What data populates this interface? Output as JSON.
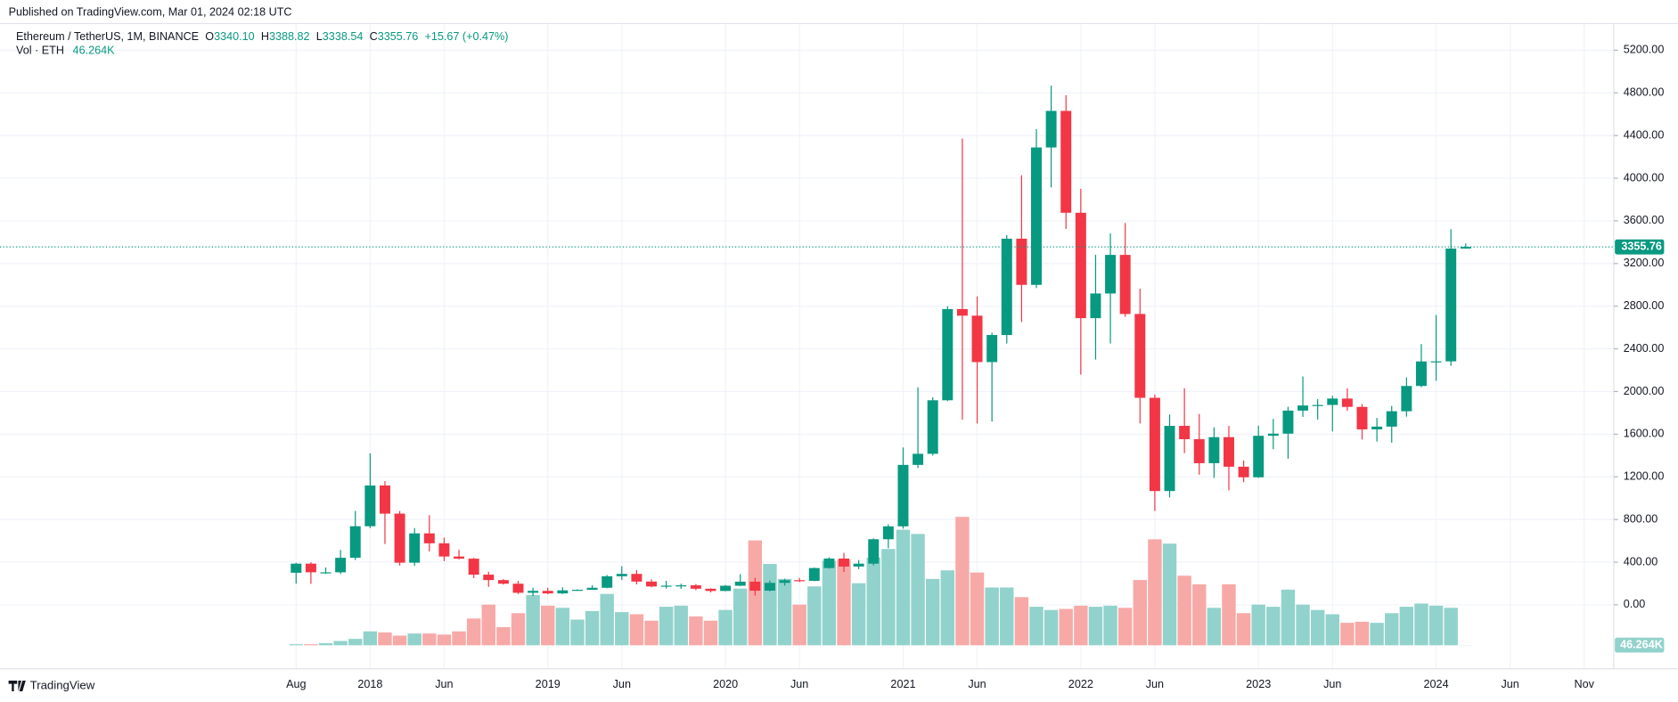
{
  "header": {
    "published": "Published on TradingView.com, Mar 01, 2024 02:18 UTC"
  },
  "legend": {
    "symbol": "Ethereum / TetherUS, 1M, BINANCE",
    "o": "O",
    "open": "3340.10",
    "h": "H",
    "high": "3388.82",
    "l": "L",
    "low": "3338.54",
    "c": "C",
    "close": "3355.76",
    "change": "+15.67 (+0.47%)",
    "volume_name": "Vol · ETH"
  },
  "footer": {
    "brand": "TradingView"
  },
  "chart_data": {
    "type": "candlestick",
    "x": [
      "2017-08",
      "2017-09",
      "2017-10",
      "2017-11",
      "2017-12",
      "2018-01",
      "2018-02",
      "2018-03",
      "2018-04",
      "2018-05",
      "2018-06",
      "2018-07",
      "2018-08",
      "2018-09",
      "2018-10",
      "2018-11",
      "2018-12",
      "2019-01",
      "2019-02",
      "2019-03",
      "2019-04",
      "2019-05",
      "2019-06",
      "2019-07",
      "2019-08",
      "2019-09",
      "2019-10",
      "2019-11",
      "2019-12",
      "2020-01",
      "2020-02",
      "2020-03",
      "2020-04",
      "2020-05",
      "2020-06",
      "2020-07",
      "2020-08",
      "2020-09",
      "2020-10",
      "2020-11",
      "2020-12",
      "2021-01",
      "2021-02",
      "2021-03",
      "2021-04",
      "2021-05",
      "2021-06",
      "2021-07",
      "2021-08",
      "2021-09",
      "2021-10",
      "2021-11",
      "2021-12",
      "2022-01",
      "2022-02",
      "2022-03",
      "2022-04",
      "2022-05",
      "2022-06",
      "2022-07",
      "2022-08",
      "2022-09",
      "2022-10",
      "2022-11",
      "2022-12",
      "2023-01",
      "2023-02",
      "2023-03",
      "2023-04",
      "2023-05",
      "2023-06",
      "2023-07",
      "2023-08",
      "2023-09",
      "2023-10",
      "2023-11",
      "2023-12",
      "2024-01",
      "2024-02",
      "2024-03"
    ],
    "open": [
      301,
      386,
      305,
      305,
      441,
      737,
      1119,
      855,
      395,
      670,
      577,
      453,
      433,
      283,
      232,
      198,
      113,
      131,
      107,
      136,
      141,
      160,
      268,
      290,
      218,
      172,
      180,
      183,
      151,
      130,
      179,
      217,
      133,
      206,
      231,
      225,
      345,
      434,
      359,
      386,
      615,
      736,
      1312,
      1416,
      1918,
      2773,
      2711,
      2276,
      2530,
      3433,
      3000,
      4288,
      4631,
      3676,
      2688,
      2919,
      3281,
      2727,
      1941,
      1067,
      1678,
      1553,
      1328,
      1572,
      1295,
      1196,
      1585,
      1605,
      1821,
      1869,
      1874,
      1934,
      1856,
      1645,
      1671,
      1815,
      2052,
      2282,
      2283,
      3340.1
    ],
    "high": [
      394,
      400,
      350,
      515,
      881,
      1420,
      1160,
      880,
      720,
      840,
      630,
      515,
      440,
      310,
      240,
      225,
      160,
      160,
      165,
      145,
      185,
      280,
      362,
      325,
      238,
      225,
      198,
      195,
      155,
      186,
      288,
      253,
      227,
      245,
      253,
      349,
      445,
      488,
      420,
      623,
      755,
      1475,
      2040,
      1945,
      2800,
      4372,
      2891,
      2551,
      3466,
      4027,
      4460,
      4868,
      4778,
      3900,
      3282,
      3482,
      3580,
      2965,
      1972,
      1785,
      2030,
      1790,
      1664,
      1678,
      1353,
      1680,
      1743,
      1857,
      2141,
      1928,
      1960,
      2029,
      1882,
      1752,
      1865,
      2133,
      2445,
      2717,
      3522,
      3388.82
    ],
    "low": [
      200,
      197,
      290,
      290,
      420,
      720,
      570,
      368,
      365,
      500,
      410,
      425,
      250,
      168,
      190,
      101,
      82,
      100,
      102,
      130,
      140,
      155,
      232,
      192,
      165,
      152,
      150,
      137,
      116,
      127,
      176,
      86,
      127,
      180,
      214,
      222,
      340,
      308,
      335,
      370,
      531,
      715,
      1283,
      1400,
      1910,
      1736,
      1700,
      1718,
      2450,
      2651,
      2970,
      3913,
      3524,
      2159,
      2300,
      2450,
      2700,
      1700,
      881,
      1007,
      1422,
      1220,
      1190,
      1073,
      1150,
      1190,
      1460,
      1370,
      1762,
      1737,
      1626,
      1820,
      1550,
      1531,
      1521,
      1764,
      2040,
      2100,
      2240,
      3338.54
    ],
    "close": [
      386,
      305,
      305,
      441,
      737,
      1119,
      855,
      395,
      670,
      577,
      453,
      433,
      283,
      232,
      198,
      113,
      131,
      107,
      136,
      141,
      160,
      268,
      290,
      218,
      172,
      180,
      183,
      151,
      130,
      179,
      217,
      133,
      206,
      231,
      225,
      345,
      434,
      359,
      386,
      615,
      736,
      1312,
      1416,
      1918,
      2773,
      2711,
      2276,
      2530,
      3433,
      3000,
      4288,
      4631,
      3676,
      2688,
      2919,
      3281,
      2727,
      1941,
      1067,
      1678,
      1553,
      1328,
      1572,
      1295,
      1196,
      1585,
      1605,
      1821,
      1869,
      1874,
      1934,
      1856,
      1645,
      1671,
      1815,
      2052,
      2282,
      2283,
      3340.1,
      3355.76
    ],
    "volume": {
      "values": [
        300000,
        300000,
        600000,
        1200000,
        1800000,
        3900000,
        3600000,
        2700000,
        3300000,
        3300000,
        3000000,
        3900000,
        7500000,
        11400000,
        5100000,
        9000000,
        14100000,
        11100000,
        10500000,
        7200000,
        9600000,
        14400000,
        9300000,
        8700000,
        6900000,
        10800000,
        11100000,
        8100000,
        6900000,
        9900000,
        15900000,
        29400000,
        22800000,
        18600000,
        11400000,
        16500000,
        23700000,
        24000000,
        17400000,
        24600000,
        27000000,
        32400000,
        31200000,
        18600000,
        21000000,
        36000000,
        20400000,
        16200000,
        16200000,
        13500000,
        10800000,
        9900000,
        10200000,
        11100000,
        10800000,
        11100000,
        10500000,
        18300000,
        29700000,
        28500000,
        19500000,
        17100000,
        10500000,
        17100000,
        9000000,
        11400000,
        10800000,
        15600000,
        11400000,
        9900000,
        8700000,
        6300000,
        6600000,
        6300000,
        9000000,
        10800000,
        11700000,
        11100000,
        10500000,
        46264
      ],
      "value_labels": [
        null,
        null,
        null,
        null,
        null,
        null,
        null,
        null,
        null,
        null,
        null,
        null,
        null,
        null,
        null,
        null,
        null,
        null,
        null,
        null,
        null,
        null,
        null,
        null,
        null,
        null,
        null,
        null,
        null,
        null,
        null,
        null,
        null,
        null,
        null,
        null,
        null,
        null,
        null,
        null,
        null,
        null,
        null,
        null,
        null,
        null,
        null,
        null,
        null,
        null,
        null,
        null,
        null,
        null,
        null,
        null,
        null,
        null,
        null,
        null,
        null,
        null,
        null,
        null,
        null,
        null,
        null,
        null,
        null,
        null,
        null,
        null,
        null,
        null,
        null,
        null,
        null,
        null,
        null,
        "46.264K"
      ]
    },
    "up_color": "#089981",
    "down_color": "#f23645",
    "up_volume_color": "#92d2cc",
    "down_volume_color": "#f7a9a7",
    "last_price": {
      "value": 3355.76,
      "label": "3355.76"
    },
    "xlim": [
      "2015-12",
      "2025-01"
    ],
    "xticks": [
      {
        "value": "2017-08",
        "label": "Aug"
      },
      {
        "value": "2018-01",
        "label": "2018"
      },
      {
        "value": "2018-06",
        "label": "Jun"
      },
      {
        "value": "2019-01",
        "label": "2019"
      },
      {
        "value": "2019-06",
        "label": "Jun"
      },
      {
        "value": "2020-01",
        "label": "2020"
      },
      {
        "value": "2020-06",
        "label": "Jun"
      },
      {
        "value": "2021-01",
        "label": "2021"
      },
      {
        "value": "2021-06",
        "label": "Jun"
      },
      {
        "value": "2022-01",
        "label": "2022"
      },
      {
        "value": "2022-06",
        "label": "Jun"
      },
      {
        "value": "2023-01",
        "label": "2023"
      },
      {
        "value": "2023-06",
        "label": "Jun"
      },
      {
        "value": "2024-01",
        "label": "2024"
      },
      {
        "value": "2024-06",
        "label": "Jun"
      },
      {
        "value": "2024-11",
        "label": "Nov"
      }
    ],
    "ylim": [
      -600,
      5450
    ],
    "yticks": [
      {
        "value": 0,
        "label": "0.00"
      },
      {
        "value": 400,
        "label": "400.00"
      },
      {
        "value": 800,
        "label": "800.00"
      },
      {
        "value": 1200,
        "label": "1200.00"
      },
      {
        "value": 1600,
        "label": "1600.00"
      },
      {
        "value": 2000,
        "label": "2000.00"
      },
      {
        "value": 2400,
        "label": "2400.00"
      },
      {
        "value": 2800,
        "label": "2800.00"
      },
      {
        "value": 3200,
        "label": "3200.00"
      },
      {
        "value": 3600,
        "label": "3600.00"
      },
      {
        "value": 4000,
        "label": "4000.00"
      },
      {
        "value": 4400,
        "label": "4400.00"
      },
      {
        "value": 4800,
        "label": "4800.00"
      },
      {
        "value": 5200,
        "label": "5200.00"
      }
    ],
    "grid": true
  }
}
